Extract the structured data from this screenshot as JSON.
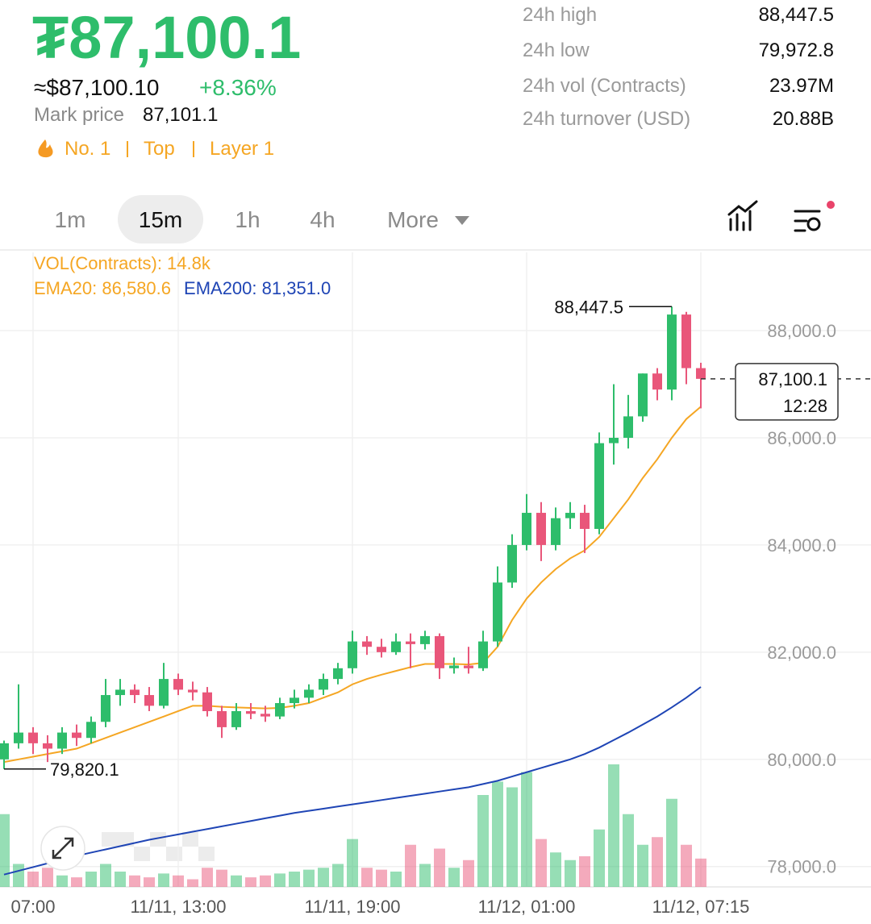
{
  "header": {
    "price": "₮87,100.1",
    "approx": "≈$87,100.10",
    "change": "+8.36%",
    "mark_label": "Mark price",
    "mark_value": "87,101.1",
    "tags": [
      "No. 1",
      "Top",
      "Layer 1"
    ]
  },
  "stats": [
    {
      "label": "24h high",
      "value": "88,447.5"
    },
    {
      "label": "24h low",
      "value": "79,972.8"
    },
    {
      "label": "24h vol (Contracts)",
      "value": "23.97M"
    },
    {
      "label": "24h turnover (USD)",
      "value": "20.88B"
    }
  ],
  "tabs": [
    "1m",
    "15m",
    "1h",
    "4h",
    "More"
  ],
  "active_tab": 1,
  "chart_data": {
    "type": "candlestick",
    "indicators": {
      "volume": "VOL(Contracts): 14.8k"
    },
    "up_color": "#2ebd6b",
    "down_color": "#e9567a",
    "categories": [
      null,
      null,
      "07:00",
      null,
      null,
      null,
      null,
      null,
      null,
      null,
      null,
      null,
      "11/11, 13:00",
      null,
      null,
      null,
      null,
      null,
      null,
      null,
      null,
      null,
      null,
      null,
      "11/11, 19:00",
      null,
      null,
      null,
      null,
      null,
      null,
      null,
      null,
      null,
      null,
      null,
      "11/12, 01:00",
      null,
      null,
      null,
      null,
      null,
      null,
      null,
      null,
      null,
      null,
      null,
      "11/12, 07:15"
    ],
    "open": [
      80000,
      80300,
      80500,
      80300,
      80200,
      80500,
      80400,
      80700,
      81200,
      81300,
      81200,
      81000,
      81500,
      81300,
      81250,
      80900,
      80600,
      80900,
      80850,
      80800,
      81050,
      81150,
      81300,
      81500,
      81700,
      82200,
      82100,
      82000,
      82200,
      82150,
      82300,
      81700,
      81750,
      81700,
      82200,
      83300,
      84000,
      84600,
      84000,
      84500,
      84600,
      84300,
      85900,
      86000,
      86400,
      87200,
      86900,
      88300,
      87300
    ],
    "high": [
      80350,
      81400,
      80600,
      80450,
      80600,
      80650,
      80800,
      81500,
      81500,
      81400,
      81350,
      81800,
      81600,
      81450,
      81350,
      81000,
      81050,
      81050,
      81000,
      81150,
      81300,
      81400,
      81600,
      81800,
      82400,
      82300,
      82250,
      82350,
      82350,
      82400,
      82350,
      81900,
      82100,
      82400,
      83600,
      84200,
      84950,
      84800,
      84700,
      84800,
      84750,
      86100,
      87000,
      86800,
      87200,
      87300,
      88447.5,
      88350,
      87400
    ],
    "low": [
      79820.1,
      80200,
      80100,
      79950,
      80100,
      80250,
      80300,
      80600,
      81000,
      81050,
      80900,
      80950,
      81200,
      81100,
      80800,
      80400,
      80550,
      80750,
      80700,
      80750,
      80950,
      81050,
      81200,
      81400,
      81600,
      81950,
      81900,
      81950,
      81700,
      82050,
      81500,
      81600,
      81600,
      81650,
      82100,
      83200,
      83900,
      83700,
      83900,
      84300,
      83850,
      84200,
      85500,
      85800,
      86300,
      86700,
      86700,
      87000,
      86550
    ],
    "close": [
      80300,
      80500,
      80300,
      80200,
      80500,
      80400,
      80700,
      81200,
      81300,
      81200,
      81000,
      81500,
      81300,
      81250,
      80900,
      80600,
      80900,
      80850,
      80800,
      81050,
      81150,
      81300,
      81500,
      81700,
      82200,
      82100,
      82000,
      82200,
      82150,
      82300,
      81700,
      81750,
      81700,
      82200,
      83300,
      84000,
      84600,
      84000,
      84500,
      84600,
      84300,
      85900,
      86000,
      86400,
      87200,
      86900,
      88300,
      87300,
      87100.1
    ],
    "volume": [
      38000,
      12000,
      8000,
      10000,
      6000,
      5000,
      8000,
      12000,
      8000,
      6000,
      5000,
      7000,
      6000,
      4000,
      10000,
      9000,
      6000,
      5000,
      6000,
      7000,
      8000,
      9000,
      10000,
      12000,
      25000,
      10000,
      9000,
      8000,
      22000,
      12000,
      20000,
      10000,
      14000,
      48000,
      55000,
      52000,
      60000,
      25000,
      18000,
      14000,
      16000,
      30000,
      64000,
      38000,
      22000,
      26000,
      46000,
      22000,
      14800
    ],
    "vlim": [
      0,
      64000
    ],
    "series": [
      {
        "label": "EMA20: 86,580.6",
        "color": "#f5a623",
        "values": [
          79950,
          80000,
          80050,
          80100,
          80150,
          80200,
          80300,
          80400,
          80500,
          80600,
          80700,
          80800,
          80900,
          81000,
          81000,
          80980,
          80970,
          80960,
          80950,
          80960,
          81000,
          81050,
          81150,
          81250,
          81400,
          81500,
          81580,
          81650,
          81720,
          81780,
          81780,
          81780,
          81770,
          81800,
          82100,
          82600,
          83000,
          83300,
          83550,
          83750,
          83900,
          84150,
          84500,
          84850,
          85250,
          85600,
          86000,
          86350,
          86580.6
        ]
      },
      {
        "label": "EMA200: 81,351.0",
        "color": "#1f45b5",
        "values": [
          77850,
          77920,
          77990,
          78060,
          78130,
          78200,
          78260,
          78320,
          78380,
          78440,
          78500,
          78550,
          78600,
          78650,
          78700,
          78750,
          78800,
          78850,
          78900,
          78950,
          79000,
          79040,
          79080,
          79120,
          79160,
          79200,
          79240,
          79280,
          79320,
          79360,
          79400,
          79440,
          79480,
          79540,
          79600,
          79680,
          79760,
          79840,
          79920,
          80000,
          80100,
          80220,
          80360,
          80500,
          80650,
          80800,
          80970,
          81150,
          81351
        ]
      }
    ],
    "ylim": [
      77620,
      89460
    ],
    "yticks": [
      {
        "value": 78000,
        "label": "78,000.0"
      },
      {
        "value": 80000,
        "label": "80,000.0"
      },
      {
        "value": 82000,
        "label": "82,000.0"
      },
      {
        "value": 84000,
        "label": "84,000.0"
      },
      {
        "value": 86000,
        "label": "86,000.0"
      },
      {
        "value": 88000,
        "label": "88,000.0"
      }
    ],
    "grid": true,
    "high_marker": {
      "value": 88447.5,
      "label": "88,447.5"
    },
    "low_marker": {
      "value": 79820.1,
      "label": "79,820.1"
    },
    "last_price": {
      "value": 87100.1,
      "label": "87,100.1",
      "countdown": "12:28"
    }
  }
}
